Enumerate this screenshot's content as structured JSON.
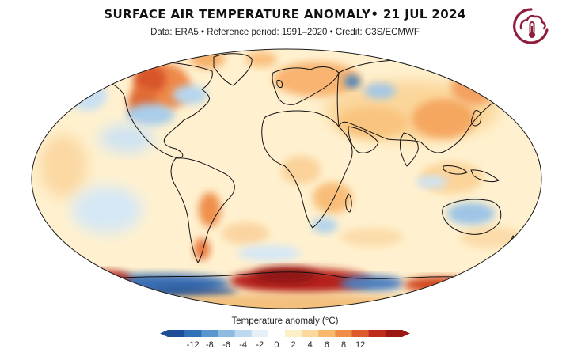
{
  "header": {
    "title": "SURFACE AIR TEMPERATURE ANOMALY• 21 JUL 2024",
    "subtitle": "Data: ERA5 • Reference period: 1991–2020 • Credit: C3S/ECMWF"
  },
  "logo": {
    "icon": "c3s-thermometer-logo-icon",
    "color": "#8f1d3c"
  },
  "map": {
    "projection": "Robinson",
    "variable": "surface air temperature anomaly",
    "coastline_color": "#111111",
    "ocean_base_color": "#fff1cf"
  },
  "colorbar": {
    "title": "Temperature anomaly (°C)",
    "ticks": [
      "-12",
      "-8",
      "-6",
      "-4",
      "-2",
      "0",
      "2",
      "4",
      "6",
      "8",
      "12"
    ],
    "colors": [
      "#1d4e96",
      "#2f72b8",
      "#5b97cf",
      "#8dbbe2",
      "#bdd9ef",
      "#e5f0f8",
      "#ffffff",
      "#fdf0c8",
      "#fbd89b",
      "#f8b86b",
      "#ef8c45",
      "#dc5a2c",
      "#bf2b1b",
      "#9b1713"
    ]
  }
}
